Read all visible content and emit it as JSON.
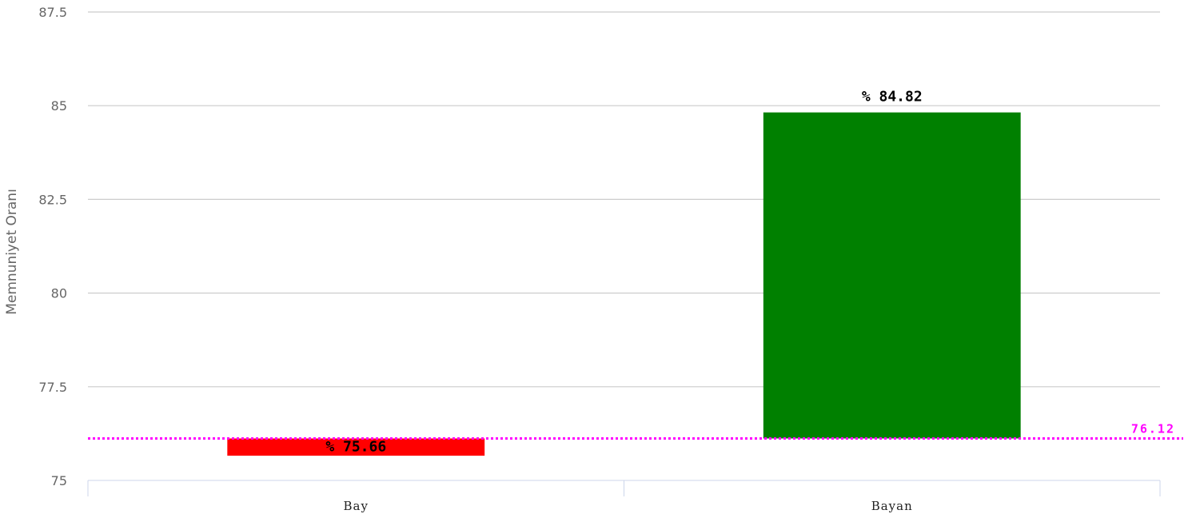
{
  "chart_data": {
    "type": "bar",
    "categories": [
      "Bay",
      "Bayan"
    ],
    "values": [
      75.66,
      84.82
    ],
    "data_labels": [
      "% 75.66",
      "% 84.82"
    ],
    "bar_colors": [
      "#ff0000",
      "#008000"
    ],
    "baseline": 76.12,
    "reference_line": {
      "value": 76.12,
      "label": "76.12",
      "color": "#ff00ff",
      "style": "dotted"
    },
    "ylabel": "Memnuniyet Oranı",
    "xlabel": "",
    "ylim": [
      75,
      87.5
    ],
    "yticks": [
      75,
      77.5,
      80,
      82.5,
      85,
      87.5
    ],
    "ytick_labels": [
      "75",
      "77.5",
      "80",
      "82.5",
      "85",
      "87.5"
    ],
    "grid": true,
    "grid_color": "#cccccc",
    "axis_color": "#ccd6eb"
  }
}
